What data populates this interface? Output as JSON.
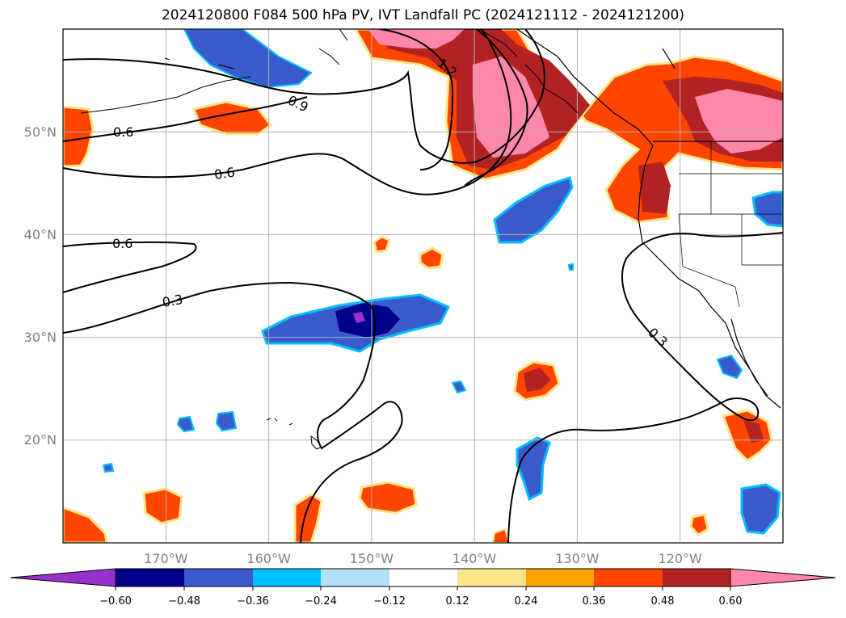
{
  "title": "2024120800 F084 500 hPa PV, IVT Landfall PC (2024121112 - 2024121200)",
  "map": {
    "projection": "PlateCarree",
    "lon_range": [
      -180,
      -110
    ],
    "lat_range": [
      10,
      60
    ],
    "lon_ticks": [
      "170°W",
      "160°W",
      "150°W",
      "140°W",
      "130°W",
      "120°W"
    ],
    "lat_ticks": [
      "50°N",
      "40°N",
      "30°N",
      "20°N"
    ],
    "grid": true
  },
  "contours": {
    "color": "#000000",
    "labels": [
      "1.2",
      "0.9",
      "0.6",
      "0.6",
      "0.6",
      "0.3",
      "0.3"
    ]
  },
  "colorbar": {
    "ticks": [
      "−0.60",
      "−0.48",
      "−0.36",
      "−0.24",
      "−0.12",
      "0.12",
      "0.24",
      "0.36",
      "0.48",
      "0.60"
    ],
    "colors": [
      "#9932cc",
      "#00008b",
      "#3a5bcc",
      "#00bfff",
      "#b0e0fa",
      "#ffffff",
      "#fde68a",
      "#ffa500",
      "#ff4500",
      "#b22222",
      "#ff88aa"
    ]
  }
}
